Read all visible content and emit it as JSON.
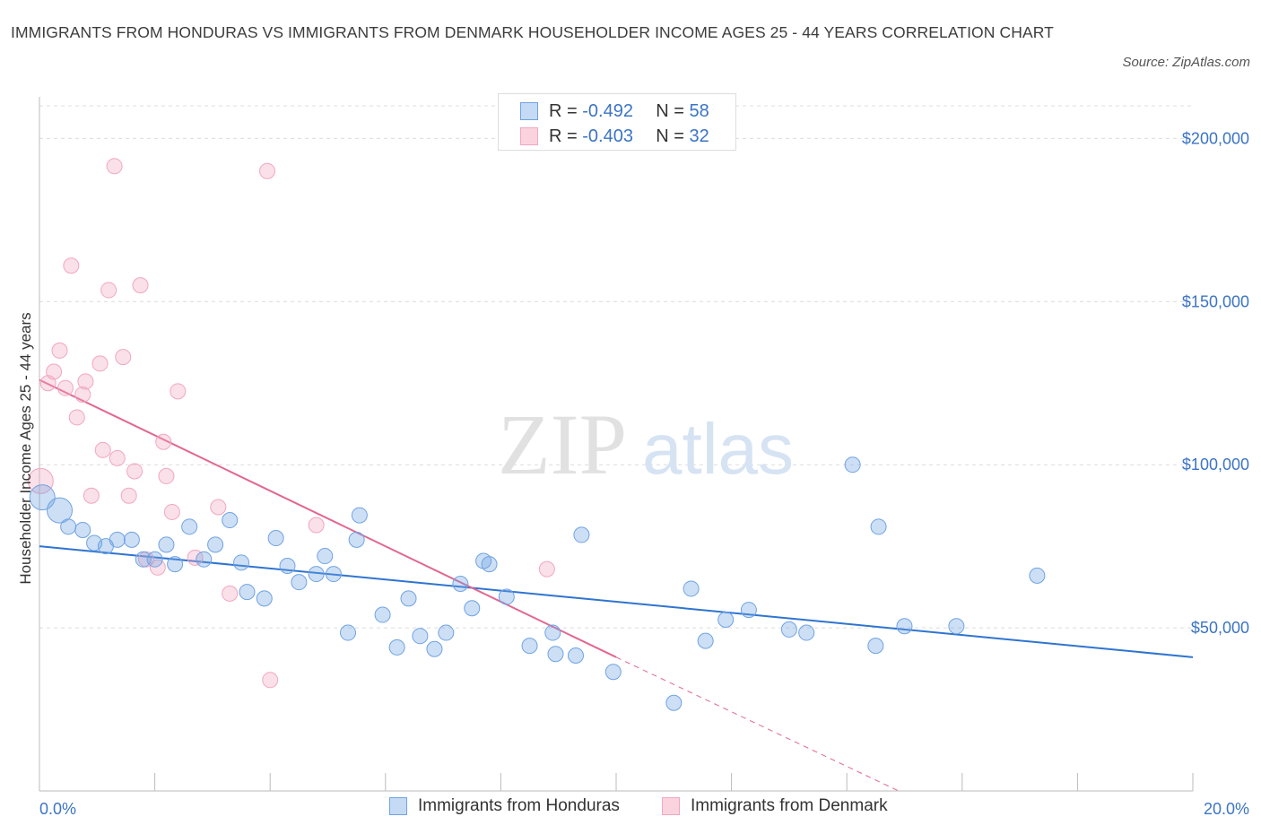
{
  "header": {
    "title": "IMMIGRANTS FROM HONDURAS VS IMMIGRANTS FROM DENMARK HOUSEHOLDER INCOME AGES 25 - 44 YEARS CORRELATION CHART",
    "source": "Source: ZipAtlas.com"
  },
  "watermark": {
    "zip": "ZIP",
    "atlas": "atlas"
  },
  "legend_top": {
    "rows": [
      {
        "r_label": "R =",
        "r_value": "-0.492",
        "n_label": "N =",
        "n_value": "58"
      },
      {
        "r_label": "R =",
        "r_value": "-0.403",
        "n_label": "N =",
        "n_value": "32"
      }
    ]
  },
  "legend_bottom": {
    "items": [
      {
        "label": "Immigrants from Honduras"
      },
      {
        "label": "Immigrants from Denmark"
      }
    ]
  },
  "chart_data": {
    "type": "scatter",
    "title": "IMMIGRANTS FROM HONDURAS VS IMMIGRANTS FROM DENMARK HOUSEHOLDER INCOME AGES 25 - 44 YEARS CORRELATION CHART",
    "xlabel": "",
    "ylabel": "Householder Income Ages 25 - 44 years",
    "xlim": [
      0,
      20
    ],
    "ylim": [
      0,
      200000
    ],
    "x_tick_labels": [
      "0.0%",
      "20.0%"
    ],
    "y_ticks": [
      50000,
      100000,
      150000,
      200000
    ],
    "y_tick_labels": [
      "$50,000",
      "$100,000",
      "$150,000",
      "$200,000"
    ],
    "grid": "horizontal dashed",
    "legend_position": "bottom",
    "colors": {
      "honduras": "#6fa3e3",
      "honduras_line": "#2f74d0",
      "denmark": "#f2a7bf",
      "denmark_line": "#e2678f"
    },
    "series": [
      {
        "name": "Immigrants from Honduras",
        "R": -0.492,
        "N": 58,
        "trend": {
          "x": [
            0,
            20
          ],
          "y": [
            75000,
            41000
          ]
        },
        "points": [
          {
            "x": 0.05,
            "y": 90000,
            "big": true
          },
          {
            "x": 0.35,
            "y": 86000,
            "big": true
          },
          {
            "x": 0.5,
            "y": 81000
          },
          {
            "x": 0.75,
            "y": 80000
          },
          {
            "x": 0.95,
            "y": 76000
          },
          {
            "x": 1.15,
            "y": 75000
          },
          {
            "x": 1.35,
            "y": 77000
          },
          {
            "x": 1.6,
            "y": 77000
          },
          {
            "x": 1.8,
            "y": 71000
          },
          {
            "x": 2.0,
            "y": 71000
          },
          {
            "x": 2.2,
            "y": 75500
          },
          {
            "x": 2.35,
            "y": 69500
          },
          {
            "x": 2.6,
            "y": 81000
          },
          {
            "x": 2.85,
            "y": 71000
          },
          {
            "x": 3.05,
            "y": 75500
          },
          {
            "x": 3.3,
            "y": 83000
          },
          {
            "x": 3.5,
            "y": 70000
          },
          {
            "x": 3.6,
            "y": 61000
          },
          {
            "x": 3.9,
            "y": 59000
          },
          {
            "x": 4.1,
            "y": 77500
          },
          {
            "x": 4.3,
            "y": 69000
          },
          {
            "x": 4.5,
            "y": 64000
          },
          {
            "x": 4.8,
            "y": 66500
          },
          {
            "x": 4.95,
            "y": 72000
          },
          {
            "x": 5.1,
            "y": 66500
          },
          {
            "x": 5.35,
            "y": 48500
          },
          {
            "x": 5.5,
            "y": 77000
          },
          {
            "x": 5.55,
            "y": 84500
          },
          {
            "x": 5.95,
            "y": 54000
          },
          {
            "x": 6.2,
            "y": 44000
          },
          {
            "x": 6.4,
            "y": 59000
          },
          {
            "x": 6.6,
            "y": 47500
          },
          {
            "x": 6.85,
            "y": 43500
          },
          {
            "x": 7.05,
            "y": 48500
          },
          {
            "x": 7.3,
            "y": 63500
          },
          {
            "x": 7.5,
            "y": 56000
          },
          {
            "x": 7.7,
            "y": 70500
          },
          {
            "x": 7.8,
            "y": 69500
          },
          {
            "x": 8.1,
            "y": 59500
          },
          {
            "x": 8.5,
            "y": 44500
          },
          {
            "x": 8.9,
            "y": 48500
          },
          {
            "x": 8.95,
            "y": 42000
          },
          {
            "x": 9.3,
            "y": 41500
          },
          {
            "x": 9.4,
            "y": 78500
          },
          {
            "x": 9.95,
            "y": 36500
          },
          {
            "x": 11.0,
            "y": 27000
          },
          {
            "x": 11.3,
            "y": 62000
          },
          {
            "x": 11.55,
            "y": 46000
          },
          {
            "x": 11.9,
            "y": 52500
          },
          {
            "x": 12.3,
            "y": 55500
          },
          {
            "x": 13.0,
            "y": 49500
          },
          {
            "x": 13.3,
            "y": 48500
          },
          {
            "x": 14.1,
            "y": 100000
          },
          {
            "x": 14.5,
            "y": 44500
          },
          {
            "x": 14.55,
            "y": 81000
          },
          {
            "x": 15.0,
            "y": 50500
          },
          {
            "x": 15.9,
            "y": 50500
          },
          {
            "x": 17.3,
            "y": 66000
          }
        ]
      },
      {
        "name": "Immigrants from Denmark",
        "R": -0.403,
        "N": 32,
        "trend": {
          "x": [
            0,
            10.0
          ],
          "y": [
            126000,
            41000
          ],
          "dashed_to": {
            "x": 14.9,
            "y": 0
          }
        },
        "points": [
          {
            "x": 0.02,
            "y": 95000,
            "big": true
          },
          {
            "x": 0.15,
            "y": 125000
          },
          {
            "x": 0.25,
            "y": 128500
          },
          {
            "x": 0.35,
            "y": 135000
          },
          {
            "x": 0.45,
            "y": 123500
          },
          {
            "x": 0.55,
            "y": 161000
          },
          {
            "x": 0.65,
            "y": 114500
          },
          {
            "x": 0.75,
            "y": 121500
          },
          {
            "x": 0.8,
            "y": 125500
          },
          {
            "x": 0.9,
            "y": 90500
          },
          {
            "x": 1.05,
            "y": 131000
          },
          {
            "x": 1.1,
            "y": 104500
          },
          {
            "x": 1.2,
            "y": 153500
          },
          {
            "x": 1.3,
            "y": 191500
          },
          {
            "x": 1.35,
            "y": 102000
          },
          {
            "x": 1.45,
            "y": 133000
          },
          {
            "x": 1.55,
            "y": 90500
          },
          {
            "x": 1.65,
            "y": 98000
          },
          {
            "x": 1.75,
            "y": 155000
          },
          {
            "x": 1.85,
            "y": 71000
          },
          {
            "x": 2.05,
            "y": 68500
          },
          {
            "x": 2.15,
            "y": 107000
          },
          {
            "x": 2.2,
            "y": 96500
          },
          {
            "x": 2.3,
            "y": 85500
          },
          {
            "x": 2.4,
            "y": 122500
          },
          {
            "x": 2.7,
            "y": 71500
          },
          {
            "x": 3.1,
            "y": 87000
          },
          {
            "x": 3.3,
            "y": 60500
          },
          {
            "x": 3.95,
            "y": 190000
          },
          {
            "x": 4.0,
            "y": 34000
          },
          {
            "x": 4.8,
            "y": 81500
          },
          {
            "x": 8.8,
            "y": 68000
          }
        ]
      }
    ]
  }
}
